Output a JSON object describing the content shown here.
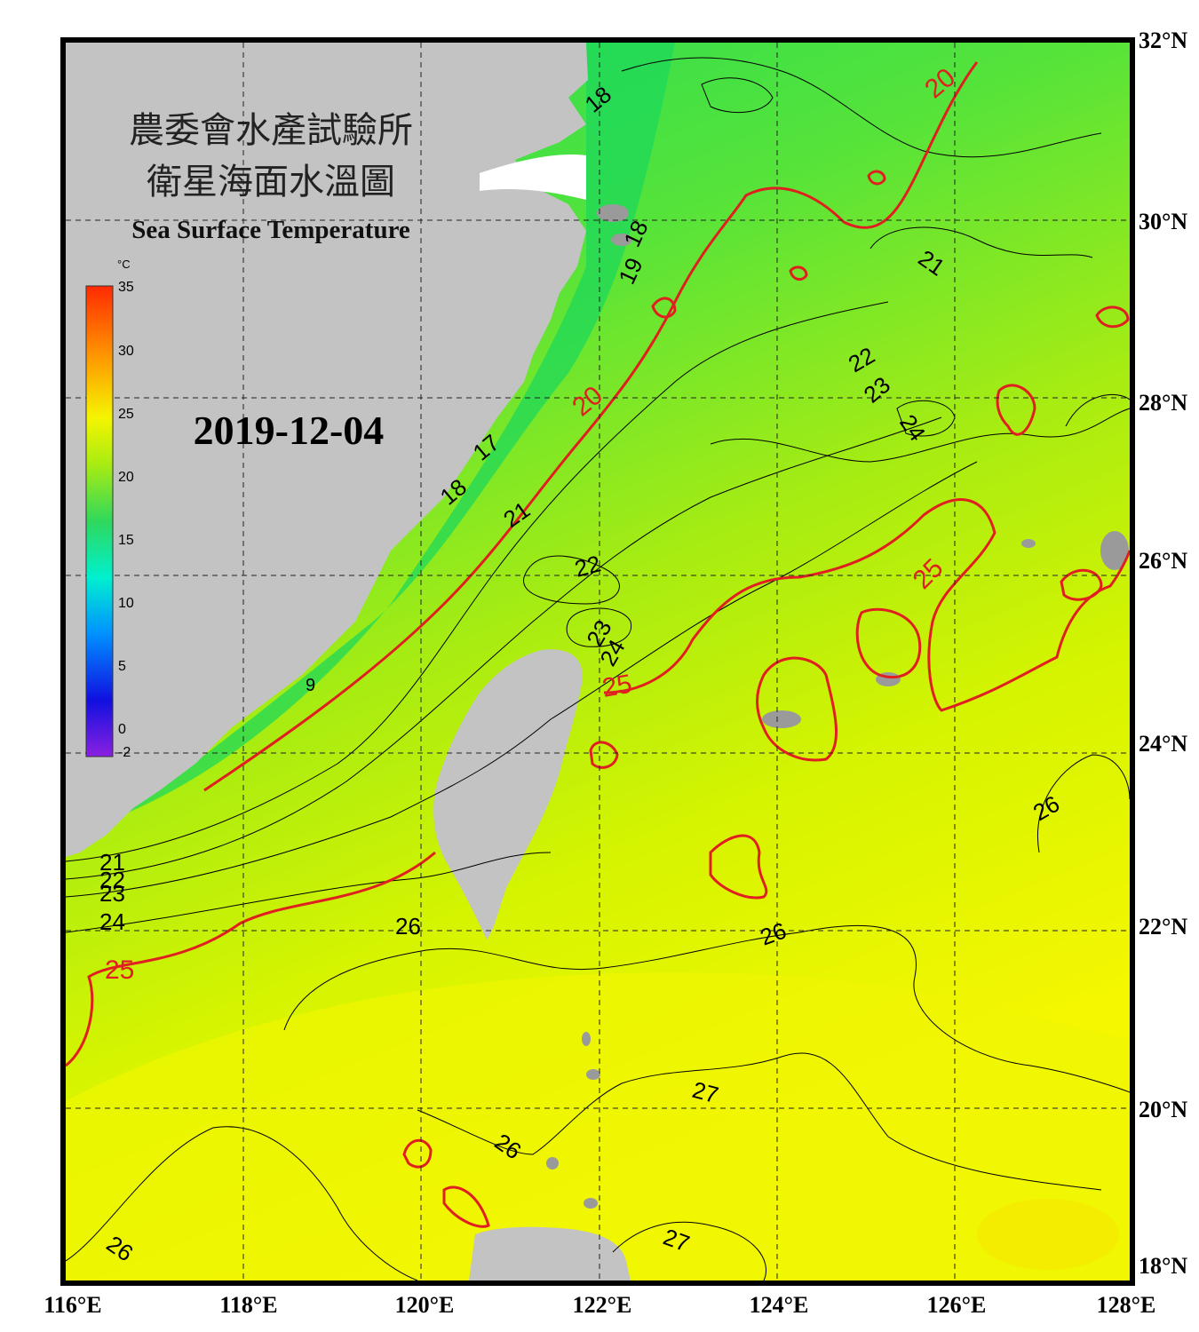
{
  "title": {
    "line1": "農委會水產試驗所",
    "line2": "衛星海面水溫圖",
    "english": "Sea Surface Temperature"
  },
  "date": "2019-12-04",
  "colorbar": {
    "unit": "°C",
    "ticks": [
      "35",
      "30",
      "25",
      "20",
      "15",
      "10",
      "5",
      "0",
      "-2"
    ]
  },
  "axes": {
    "x_labels": [
      "116°E",
      "118°E",
      "120°E",
      "122°E",
      "124°E",
      "126°E",
      "128°E"
    ],
    "y_labels": [
      "32°N",
      "30°N",
      "28°N",
      "26°N",
      "24°N",
      "22°N",
      "20°N",
      "18°N"
    ]
  },
  "contour_labels": {
    "black": [
      "18",
      "21",
      "22",
      "23",
      "24",
      "18",
      "17",
      "21",
      "22",
      "23",
      "24",
      "19",
      "18",
      "26",
      "21",
      "22",
      "23",
      "24",
      "26",
      "26",
      "27",
      "26",
      "27",
      "26",
      "9"
    ],
    "red": [
      "20",
      "20",
      "25",
      "25",
      "25"
    ]
  },
  "colors": {
    "land": "#c3c3c3",
    "cold_water": "#2fd85c",
    "mid_water": "#8fe81a",
    "warm_water": "#f2f500",
    "contour_red": "#e02020",
    "grid": "#222222"
  }
}
